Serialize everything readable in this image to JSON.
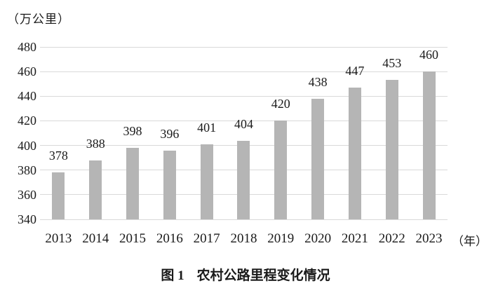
{
  "chart_data": {
    "type": "bar",
    "title": "图1 农村公路里程变化情况",
    "y_unit_label": "（万公里）",
    "x_unit_label": "（年）",
    "categories": [
      "2013",
      "2014",
      "2015",
      "2016",
      "2017",
      "2018",
      "2019",
      "2020",
      "2021",
      "2022",
      "2023"
    ],
    "values": [
      378,
      388,
      398,
      396,
      401,
      404,
      420,
      438,
      447,
      453,
      460
    ],
    "ylim": [
      340,
      480
    ],
    "yticks": [
      340,
      360,
      380,
      400,
      420,
      440,
      460,
      480
    ],
    "grid": true,
    "legend": "none",
    "data_labels": true,
    "colors": {
      "bar": "#b5b5b5",
      "gridline": "#d9d9d9",
      "text": "#1a1a1a",
      "background": "#ffffff"
    }
  },
  "caption": {
    "label": "图 1",
    "title": "农村公路里程变化情况"
  }
}
